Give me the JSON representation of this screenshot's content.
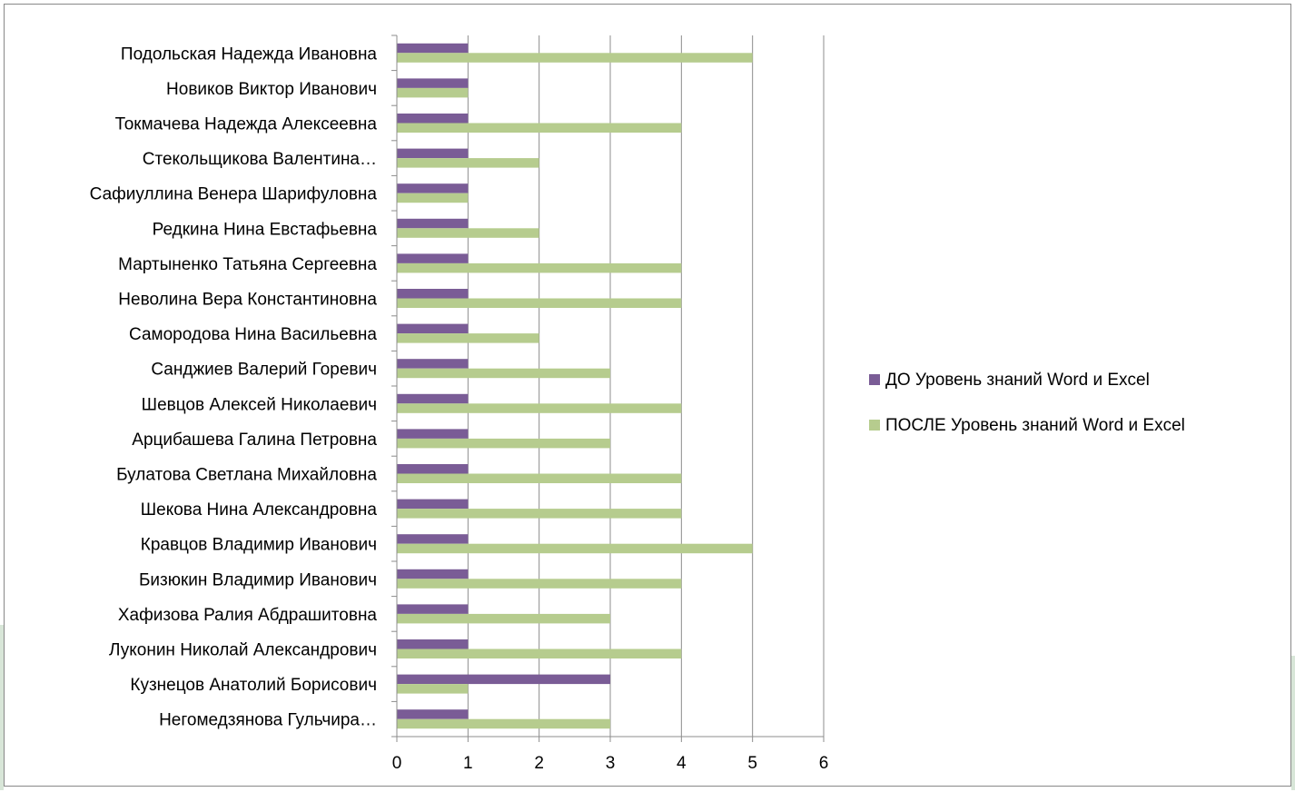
{
  "chart_data": {
    "type": "bar",
    "orientation": "horizontal",
    "categories": [
      "Подольская Надежда Ивановна",
      "Новиков Виктор Иванович",
      "Токмачева Надежда Алексеевна",
      "Стекольщикова Валентина…",
      "Сафиуллина Венера Шарифуловна",
      "Редкина Нина Евстафьевна",
      "Мартыненко Татьяна Сергеевна",
      "Неволина Вера Константиновна",
      "Самородова Нина Васильевна",
      "Санджиев Валерий Горевич",
      "Шевцов Алексей Николаевич",
      "Арцибашева Галина Петровна",
      "Булатова Светлана Михайловна",
      "Шекова Нина Александровна",
      "Кравцов Владимир Иванович",
      "Бизюкин Владимир Иванович",
      "Хафизова Ралия Абдрашитовна",
      "Луконин Николай Александрович",
      "Кузнецов Анатолий Борисович",
      "Негомедзянова Гульчира…"
    ],
    "series": [
      {
        "name": "ДО Уровень знаний Word и Excel",
        "color": "#7a5c96",
        "values": [
          1,
          1,
          1,
          1,
          1,
          1,
          1,
          1,
          1,
          1,
          1,
          1,
          1,
          1,
          1,
          1,
          1,
          1,
          3,
          1
        ]
      },
      {
        "name": "ПОСЛЕ Уровень знаний Word и Excel",
        "color": "#b6cc8e",
        "values": [
          5,
          1,
          4,
          2,
          1,
          2,
          4,
          4,
          2,
          3,
          4,
          3,
          4,
          4,
          5,
          4,
          3,
          4,
          1,
          3
        ]
      }
    ],
    "xlim": [
      0,
      6
    ],
    "xticks": [
      "0",
      "1",
      "2",
      "3",
      "4",
      "5",
      "6"
    ],
    "grid": true,
    "legend_position": "right"
  }
}
